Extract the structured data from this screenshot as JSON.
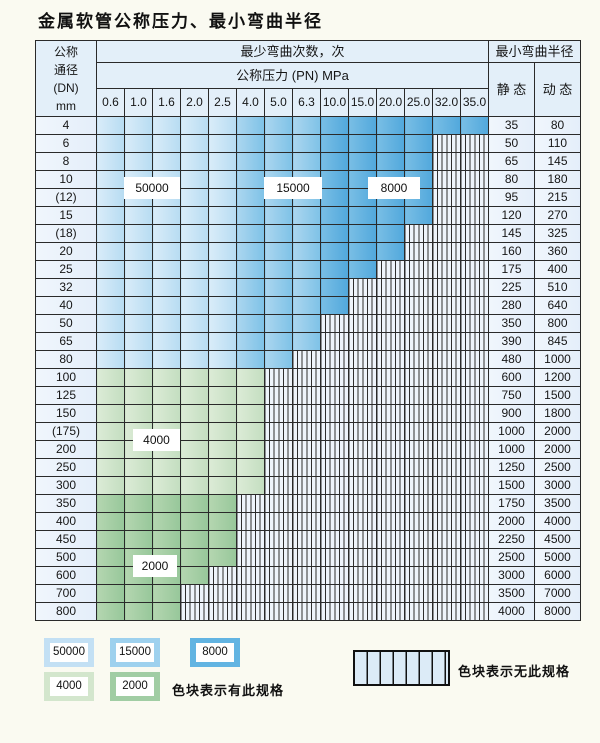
{
  "title": "金属软管公称压力、最小弯曲半径",
  "table": {
    "dn_header_lines": [
      "公称",
      "通径",
      "(DN)",
      "mm"
    ],
    "bend_cycles_label": "最少弯曲次数，次",
    "pressure_label": "公称压力 (PN) MPa",
    "radius_label": "最小弯曲半径",
    "static_label": "静 态",
    "dynamic_label": "动 态"
  },
  "region_labels": [
    "50000",
    "15000",
    "8000",
    "4000",
    "2000"
  ],
  "legend": {
    "items": [
      {
        "label": "50000",
        "color": "#c3e0f4"
      },
      {
        "label": "15000",
        "color": "#9ed1ee"
      },
      {
        "label": "8000",
        "color": "#62b4e2"
      },
      {
        "label": "4000",
        "color": "#d3e6cd"
      },
      {
        "label": "2000",
        "color": "#a1cda4"
      }
    ],
    "has_spec_note": "色块表示有此规格",
    "no_spec_note": "色块表示无此规格"
  },
  "chart_data": {
    "type": "table",
    "title": "金属软管公称压力、最小弯曲半径",
    "pressure_columns": [
      "0.6",
      "1.0",
      "1.6",
      "2.0",
      "2.5",
      "4.0",
      "5.0",
      "6.3",
      "10.0",
      "15.0",
      "20.0",
      "25.0",
      "32.0",
      "35.0"
    ],
    "column_units": "MPa",
    "bend_cycle_ratings": {
      "blue_rows_DN4_to_DN80_by_pressure": {
        "0.6-2.5": 50000,
        "4.0-6.3": 15000,
        "10.0-35.0": 8000
      },
      "green_rows_DN100_to_DN300": 4000,
      "green_rows_DN350_to_DN800": 2000,
      "hatched_cells": "无此规格"
    },
    "rows": [
      {
        "dn": "4",
        "static": "35",
        "dynamic": "80",
        "colored_through_col": 14,
        "band": "blue"
      },
      {
        "dn": "6",
        "static": "50",
        "dynamic": "110",
        "colored_through_col": 12,
        "band": "blue"
      },
      {
        "dn": "8",
        "static": "65",
        "dynamic": "145",
        "colored_through_col": 12,
        "band": "blue"
      },
      {
        "dn": "10",
        "static": "80",
        "dynamic": "180",
        "colored_through_col": 12,
        "band": "blue"
      },
      {
        "dn": "(12)",
        "static": "95",
        "dynamic": "215",
        "colored_through_col": 12,
        "band": "blue"
      },
      {
        "dn": "15",
        "static": "120",
        "dynamic": "270",
        "colored_through_col": 12,
        "band": "blue"
      },
      {
        "dn": "(18)",
        "static": "145",
        "dynamic": "325",
        "colored_through_col": 11,
        "band": "blue"
      },
      {
        "dn": "20",
        "static": "160",
        "dynamic": "360",
        "colored_through_col": 11,
        "band": "blue"
      },
      {
        "dn": "25",
        "static": "175",
        "dynamic": "400",
        "colored_through_col": 10,
        "band": "blue"
      },
      {
        "dn": "32",
        "static": "225",
        "dynamic": "510",
        "colored_through_col": 9,
        "band": "blue"
      },
      {
        "dn": "40",
        "static": "280",
        "dynamic": "640",
        "colored_through_col": 9,
        "band": "blue"
      },
      {
        "dn": "50",
        "static": "350",
        "dynamic": "800",
        "colored_through_col": 8,
        "band": "blue"
      },
      {
        "dn": "65",
        "static": "390",
        "dynamic": "845",
        "colored_through_col": 8,
        "band": "blue"
      },
      {
        "dn": "80",
        "static": "480",
        "dynamic": "1000",
        "colored_through_col": 7,
        "band": "blue"
      },
      {
        "dn": "100",
        "static": "600",
        "dynamic": "1200",
        "colored_through_col": 6,
        "band": "g4000"
      },
      {
        "dn": "125",
        "static": "750",
        "dynamic": "1500",
        "colored_through_col": 6,
        "band": "g4000"
      },
      {
        "dn": "150",
        "static": "900",
        "dynamic": "1800",
        "colored_through_col": 6,
        "band": "g4000"
      },
      {
        "dn": "(175)",
        "static": "1000",
        "dynamic": "2000",
        "colored_through_col": 6,
        "band": "g4000"
      },
      {
        "dn": "200",
        "static": "1000",
        "dynamic": "2000",
        "colored_through_col": 6,
        "band": "g4000"
      },
      {
        "dn": "250",
        "static": "1250",
        "dynamic": "2500",
        "colored_through_col": 6,
        "band": "g4000"
      },
      {
        "dn": "300",
        "static": "1500",
        "dynamic": "3000",
        "colored_through_col": 6,
        "band": "g4000"
      },
      {
        "dn": "350",
        "static": "1750",
        "dynamic": "3500",
        "colored_through_col": 5,
        "band": "g2000"
      },
      {
        "dn": "400",
        "static": "2000",
        "dynamic": "4000",
        "colored_through_col": 5,
        "band": "g2000"
      },
      {
        "dn": "450",
        "static": "2250",
        "dynamic": "4500",
        "colored_through_col": 5,
        "band": "g2000"
      },
      {
        "dn": "500",
        "static": "2500",
        "dynamic": "5000",
        "colored_through_col": 5,
        "band": "g2000"
      },
      {
        "dn": "600",
        "static": "3000",
        "dynamic": "6000",
        "colored_through_col": 4,
        "band": "g2000"
      },
      {
        "dn": "700",
        "static": "3500",
        "dynamic": "7000",
        "colored_through_col": 3,
        "band": "g2000"
      },
      {
        "dn": "800",
        "static": "4000",
        "dynamic": "8000",
        "colored_through_col": 3,
        "band": "g2000"
      }
    ]
  }
}
